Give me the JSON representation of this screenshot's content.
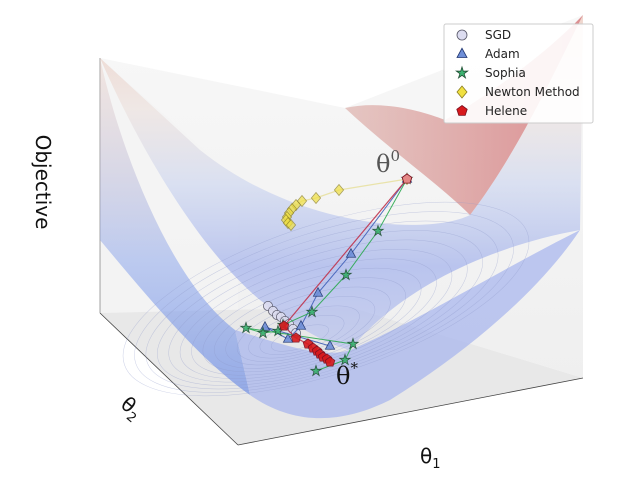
{
  "chart_data": {
    "type": "surface3d-trajectories",
    "title": "",
    "zlabel": "Objective",
    "xlabel": "θ",
    "xlabel_sub": "1",
    "ylabel": "θ",
    "ylabel_sub": "2",
    "start_label": "θ",
    "start_sup": "0",
    "opt_label": "θ",
    "opt_sup": "*",
    "legend_position": "top-right",
    "grid": false,
    "legend": [
      {
        "name": "SGD",
        "marker": "circle",
        "color": "#dcdcf0"
      },
      {
        "name": "Adam",
        "marker": "triangle",
        "color": "#6f8fd8"
      },
      {
        "name": "Sophia",
        "marker": "star",
        "color": "#3cb371"
      },
      {
        "name": "Newton Method",
        "marker": "diamond",
        "color": "#f0e040"
      },
      {
        "name": "Helene",
        "marker": "pentagon",
        "color": "#d7191c"
      }
    ],
    "series": [
      {
        "name": "SGD",
        "points": [
          [
            268,
            306
          ],
          [
            273,
            311
          ],
          [
            277,
            315
          ],
          [
            281,
            317
          ],
          [
            285,
            321
          ],
          [
            289,
            324
          ],
          [
            293,
            329
          ],
          [
            296,
            333
          ]
        ]
      },
      {
        "name": "Adam",
        "points": [
          [
            407,
            179
          ],
          [
            351,
            254
          ],
          [
            318,
            293
          ],
          [
            301,
            326
          ],
          [
            288,
            339
          ],
          [
            265,
            327
          ],
          [
            330,
            346
          ]
        ]
      },
      {
        "name": "Sophia",
        "points": [
          [
            407,
            179
          ],
          [
            378,
            231
          ],
          [
            346,
            275
          ],
          [
            312,
            312
          ],
          [
            283,
            325
          ],
          [
            278,
            331
          ],
          [
            263,
            333
          ],
          [
            246,
            328
          ],
          [
            353,
            344
          ],
          [
            345,
            360
          ],
          [
            316,
            371
          ]
        ]
      },
      {
        "name": "Newton Method",
        "points": [
          [
            407,
            179
          ],
          [
            339,
            190
          ],
          [
            316,
            198
          ],
          [
            302,
            201
          ],
          [
            296,
            205
          ],
          [
            292,
            209
          ],
          [
            289,
            213
          ],
          [
            287,
            217
          ],
          [
            286,
            220
          ],
          [
            288,
            223
          ],
          [
            291,
            225
          ]
        ]
      },
      {
        "name": "Helene",
        "points": [
          [
            407,
            179
          ],
          [
            284,
            326
          ],
          [
            296,
            338
          ],
          [
            308,
            344
          ],
          [
            313,
            348
          ],
          [
            317,
            351
          ],
          [
            320,
            354
          ],
          [
            323,
            357
          ],
          [
            327,
            359
          ],
          [
            330,
            362
          ]
        ]
      }
    ]
  }
}
